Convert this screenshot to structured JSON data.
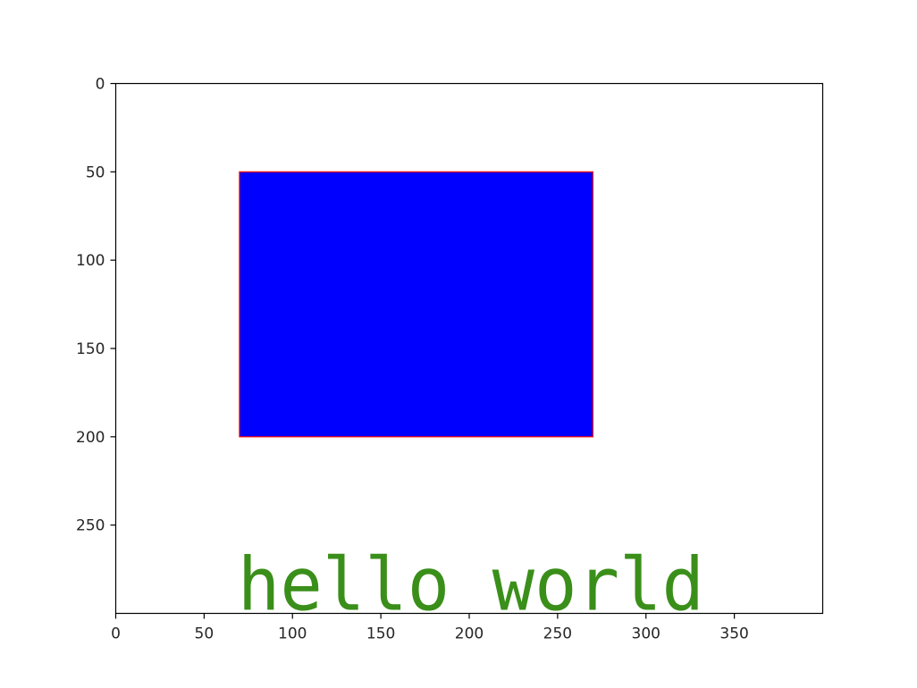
{
  "chart_data": {
    "type": "image",
    "title": "",
    "xlabel": "",
    "ylabel": "",
    "xlim": [
      0,
      400
    ],
    "ylim": [
      300,
      0
    ],
    "y_axis_inverted": true,
    "grid": false,
    "xticks": [
      0,
      50,
      100,
      150,
      200,
      250,
      300,
      350
    ],
    "yticks": [
      0,
      50,
      100,
      150,
      200,
      250
    ],
    "rectangle": {
      "x": 70,
      "y": 50,
      "width": 200,
      "height": 150,
      "facecolor": "#0000ff",
      "edgecolor": "#ff0000"
    },
    "annotation": {
      "text": "hello world",
      "x": 70,
      "y": 290,
      "color": "#3a8f1a"
    }
  }
}
